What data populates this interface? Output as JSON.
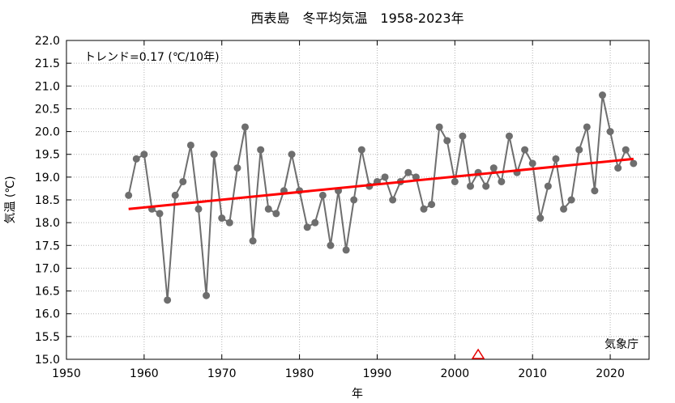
{
  "chart_data": {
    "type": "line",
    "title": "西表島　冬平均気温　1958-2023年",
    "xlabel": "年",
    "ylabel": "気温 (℃)",
    "trend_label": "トレンド=0.17 (℃/10年)",
    "source": "気象庁",
    "xlim": [
      1950,
      2025
    ],
    "ylim": [
      15.0,
      22.0
    ],
    "x_ticks": [
      1950,
      1960,
      1970,
      1980,
      1990,
      2000,
      2010,
      2020
    ],
    "y_ticks": [
      15.0,
      15.5,
      16.0,
      16.5,
      17.0,
      17.5,
      18.0,
      18.5,
      19.0,
      19.5,
      20.0,
      20.5,
      21.0,
      21.5,
      22.0
    ],
    "grid": true,
    "colors": {
      "series": "#6e6e6e",
      "trend": "#ff0000",
      "marker": "#e60000"
    },
    "x": [
      1958,
      1959,
      1960,
      1961,
      1962,
      1963,
      1964,
      1965,
      1966,
      1967,
      1968,
      1969,
      1970,
      1971,
      1972,
      1973,
      1974,
      1975,
      1976,
      1977,
      1978,
      1979,
      1980,
      1981,
      1982,
      1983,
      1984,
      1985,
      1986,
      1987,
      1988,
      1989,
      1990,
      1991,
      1992,
      1993,
      1994,
      1995,
      1996,
      1997,
      1998,
      1999,
      2000,
      2001,
      2002,
      2003,
      2004,
      2005,
      2006,
      2007,
      2008,
      2009,
      2010,
      2011,
      2012,
      2013,
      2014,
      2015,
      2016,
      2017,
      2018,
      2019,
      2020,
      2021,
      2022,
      2023
    ],
    "values": [
      18.6,
      19.4,
      19.5,
      18.3,
      18.2,
      16.3,
      18.6,
      18.9,
      19.7,
      18.3,
      16.4,
      19.5,
      18.1,
      18.0,
      19.2,
      20.1,
      17.6,
      19.6,
      18.3,
      18.2,
      18.7,
      19.5,
      18.7,
      17.9,
      18.0,
      18.6,
      17.5,
      18.7,
      17.4,
      18.5,
      19.6,
      18.8,
      18.9,
      19.0,
      18.5,
      18.9,
      19.1,
      19.0,
      18.3,
      18.4,
      20.1,
      19.8,
      18.9,
      19.9,
      18.8,
      19.1,
      18.8,
      19.2,
      18.9,
      19.9,
      19.1,
      19.6,
      19.3,
      18.1,
      18.8,
      19.4,
      18.3,
      18.5,
      19.6,
      20.1,
      18.7,
      20.8,
      20.0,
      19.2,
      19.6,
      19.3
    ],
    "trend": {
      "x": [
        1958,
        2023
      ],
      "y": [
        18.3,
        19.4
      ]
    },
    "marker_year": 2003
  }
}
